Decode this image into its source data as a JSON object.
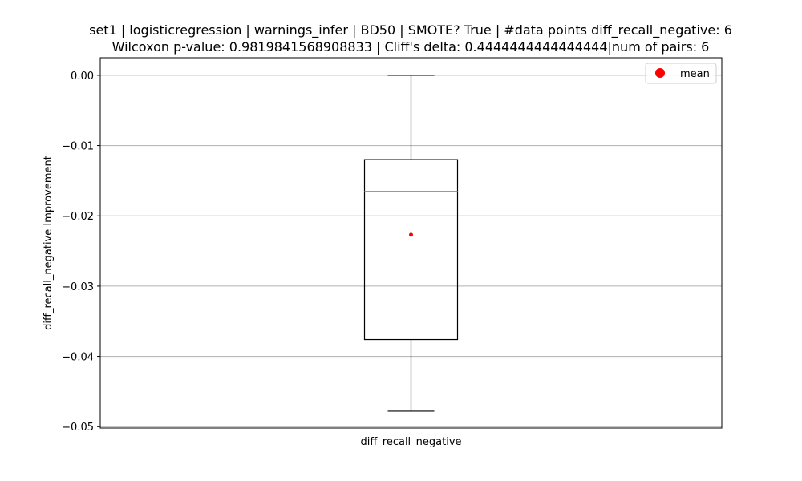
{
  "chart_data": {
    "type": "box",
    "title_line1": "set1 | logisticregression | warnings_infer | BD50 | SMOTE? True | #data points diff_recall_negative: 6",
    "title_line2": "Wilcoxon p-value: 0.9819841568908833 | Cliff's delta: 0.4444444444444444|num of pairs: 6",
    "xlabel": "",
    "ylabel": "diff_recall_negative Improvement",
    "categories": [
      "diff_recall_negative"
    ],
    "box": {
      "whisker_low": -0.0478,
      "q1": -0.0376,
      "median": -0.0165,
      "q3": -0.012,
      "whisker_high": 0.0,
      "mean": -0.0227
    },
    "ylim": [
      -0.0502,
      0.0025
    ],
    "yticks": [
      0.0,
      -0.01,
      -0.02,
      -0.03,
      -0.04,
      -0.05
    ],
    "ytick_labels": [
      "0.00",
      "−0.01",
      "−0.02",
      "−0.03",
      "−0.04",
      "−0.05"
    ],
    "grid": true,
    "legend": {
      "placement": "top-right",
      "entries": [
        {
          "label": "mean",
          "color": "#ff0000",
          "marker": "circle"
        }
      ]
    },
    "colors": {
      "box": "#000000",
      "median": "#ff7f0e",
      "mean": "#ff0000",
      "grid": "#b0b0b0"
    }
  }
}
